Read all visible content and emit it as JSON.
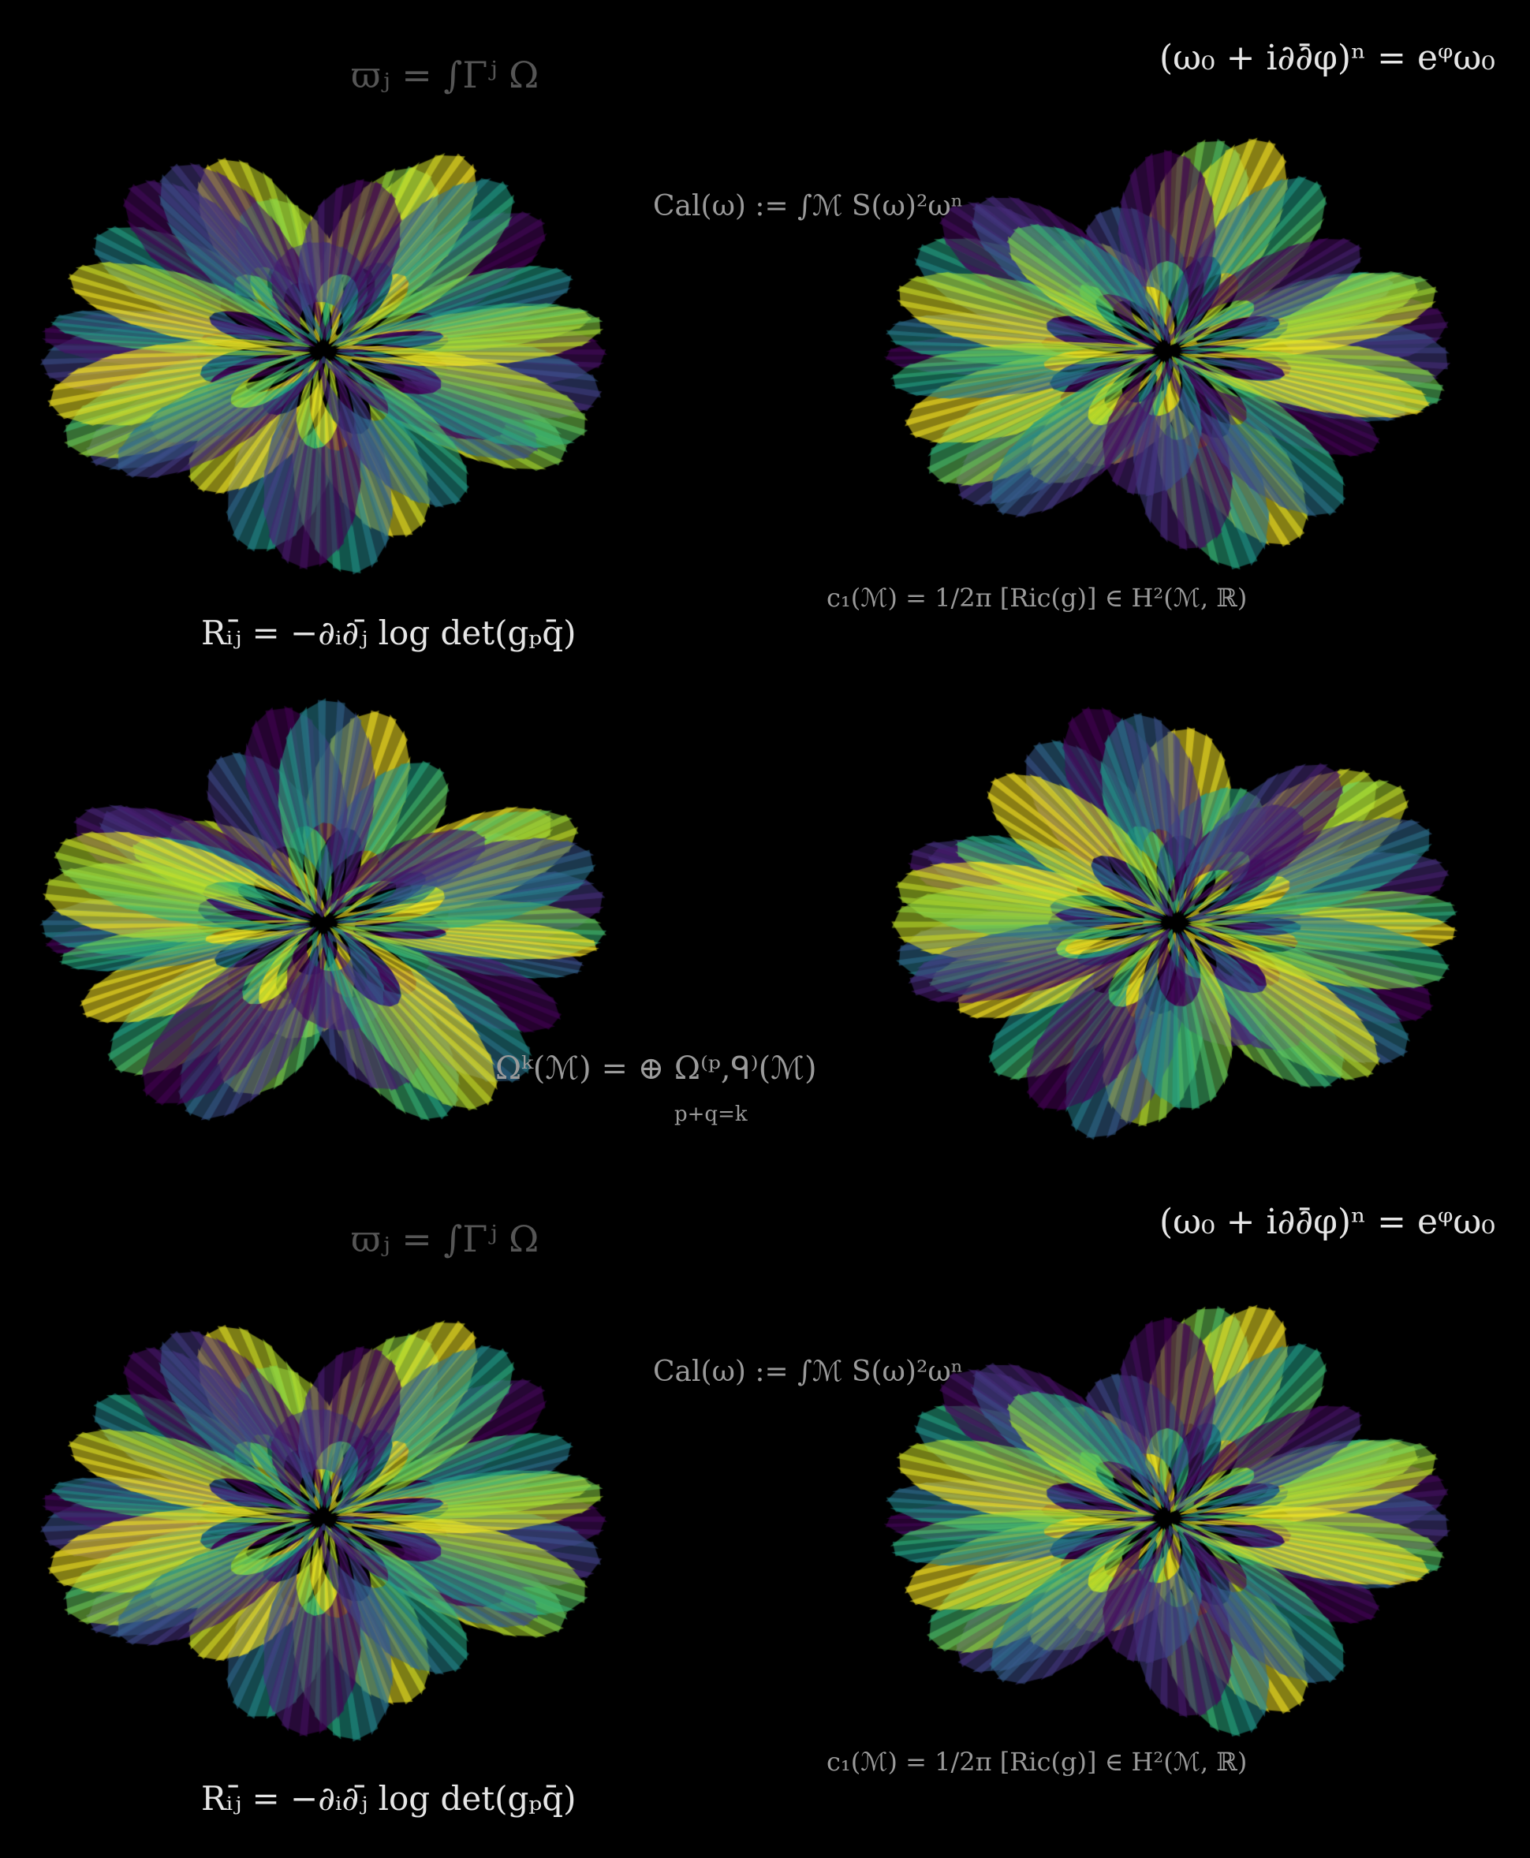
{
  "panels": [
    {
      "id": "surface-1",
      "seed": 1
    },
    {
      "id": "surface-2",
      "seed": 2
    },
    {
      "id": "surface-3",
      "seed": 3
    },
    {
      "id": "surface-4",
      "seed": 4
    },
    {
      "id": "surface-5",
      "seed": 1
    },
    {
      "id": "surface-6",
      "seed": 2
    }
  ],
  "equations": {
    "period": "ϖⱼ = ∫Γʲ Ω",
    "monge_ampere": "(ω₀ + i∂∂̄φ)ⁿ = eᵠω₀",
    "calabi": "Cal(ω) := ∫ℳ S(ω)²ωⁿ",
    "ricci": "Rᵢⱼ̄ = −∂ᵢ∂ⱼ̄ log det(gₚq̄)",
    "chern": "c₁(ℳ) = 1/2π [Ric(g)] ∈ H²(ℳ, ℝ)",
    "hodge": "Ωᵏ(ℳ) = ⊕ Ω⁽ᵖ,ᑫ⁾(ℳ)",
    "hodge_index": "p+q=k"
  },
  "colors": {
    "background": "#000000",
    "viridis_dark": "#440154",
    "viridis_mid": "#21918c",
    "viridis_light": "#fde725"
  }
}
